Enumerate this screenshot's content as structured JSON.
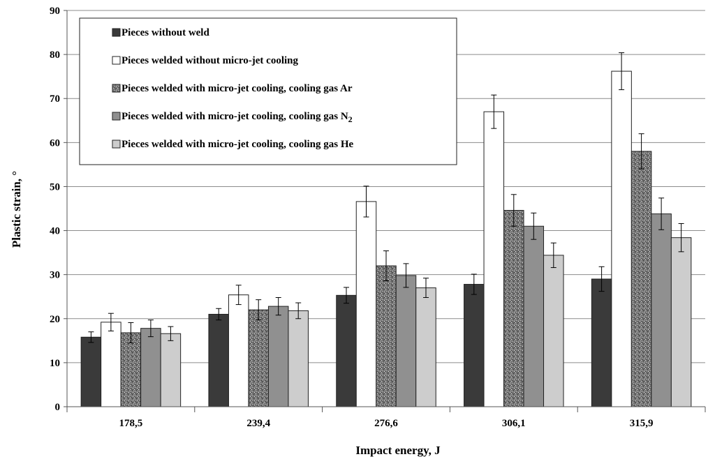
{
  "chart_data": {
    "type": "bar",
    "xlabel": "Impact energy, J",
    "ylabel": "Plastic strain, °",
    "ylim": [
      0,
      90
    ],
    "yticks": [
      0,
      10,
      20,
      30,
      40,
      50,
      60,
      70,
      80,
      90
    ],
    "grid": true,
    "legend_position": "top-left",
    "categories": [
      "178,5",
      "239,4",
      "276,6",
      "306,1",
      "315,9"
    ],
    "series": [
      {
        "name": "Pieces without weld",
        "legend_main": "Pieces without weld",
        "legend_sub": "",
        "values": [
          15.8,
          21.0,
          25.3,
          27.8,
          29.0
        ],
        "errors": [
          1.2,
          1.3,
          1.8,
          2.3,
          2.8
        ],
        "fill": "#3a3a3a",
        "pattern": "solid"
      },
      {
        "name": "Pieces welded without micro-jet cooling",
        "legend_main": "Pieces welded without micro-jet cooling",
        "legend_sub": "",
        "values": [
          19.2,
          25.4,
          46.6,
          67.0,
          76.2
        ],
        "errors": [
          2.0,
          2.2,
          3.5,
          3.8,
          4.2
        ],
        "fill": "#ffffff",
        "pattern": "solid"
      },
      {
        "name": "Pieces welded with micro-jet cooling, cooling gas Ar",
        "legend_main": "Pieces welded with micro-jet cooling, cooling gas Ar",
        "legend_sub": "",
        "values": [
          16.8,
          22.0,
          32.0,
          44.6,
          58.0
        ],
        "errors": [
          2.3,
          2.3,
          3.4,
          3.6,
          4.0
        ],
        "fill": "#8a8a8a",
        "pattern": "speckle"
      },
      {
        "name": "Pieces welded with micro-jet cooling, cooling gas N2",
        "legend_main": "Pieces welded with micro-jet cooling, cooling gas N",
        "legend_sub": "2",
        "values": [
          17.8,
          22.8,
          29.8,
          41.0,
          43.8
        ],
        "errors": [
          1.9,
          2.0,
          2.7,
          3.0,
          3.6
        ],
        "fill": "#909090",
        "pattern": "solid"
      },
      {
        "name": "Pieces welded with micro-jet cooling, cooling gas He",
        "legend_main": "Pieces welded with micro-jet cooling, cooling gas He",
        "legend_sub": "",
        "values": [
          16.6,
          21.8,
          27.0,
          34.4,
          38.4
        ],
        "errors": [
          1.6,
          1.8,
          2.2,
          2.8,
          3.2
        ],
        "fill": "#cdcdcd",
        "pattern": "solid"
      }
    ]
  }
}
